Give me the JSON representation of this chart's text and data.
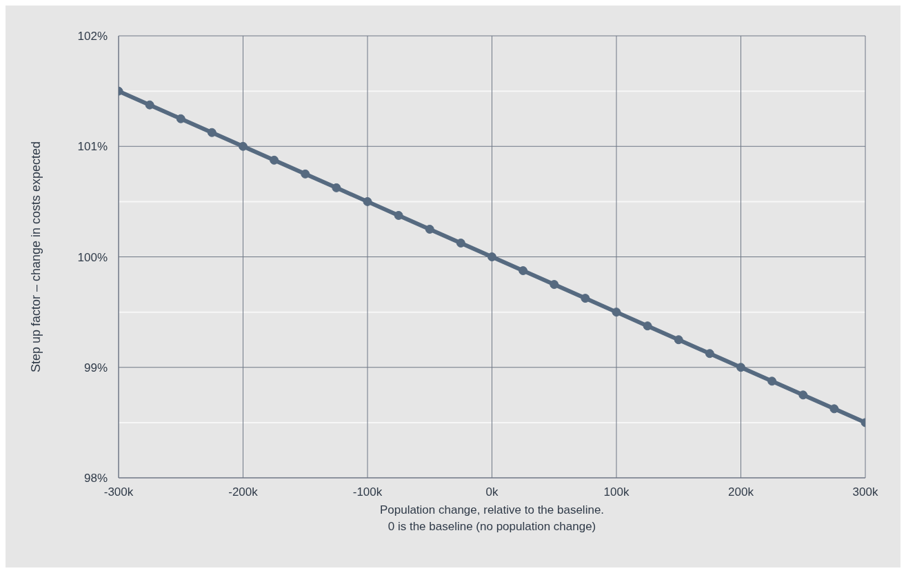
{
  "chart_data": {
    "type": "line",
    "xlabel": "Population change, relative to the baseline.\n0  is the baseline (no population change)",
    "ylabel": "Step up factor – change in costs expected",
    "x": [
      -300,
      -275,
      -250,
      -225,
      -200,
      -175,
      -150,
      -125,
      -100,
      -75,
      -50,
      -25,
      0,
      25,
      50,
      75,
      100,
      125,
      150,
      175,
      200,
      225,
      250,
      275,
      300
    ],
    "series": [
      {
        "color": "#566a80",
        "values": [
          101.5,
          101.375,
          101.25,
          101.125,
          101.0,
          100.875,
          100.75,
          100.625,
          100.5,
          100.375,
          100.25,
          100.125,
          100.0,
          99.875,
          99.75,
          99.625,
          99.5,
          99.375,
          99.25,
          99.125,
          99.0,
          98.875,
          98.75,
          98.625,
          98.5
        ]
      }
    ],
    "xlim": [
      -300,
      300
    ],
    "xticks": [
      {
        "value": -300,
        "label": "-300k"
      },
      {
        "value": -200,
        "label": "-200k"
      },
      {
        "value": -100,
        "label": "-100k"
      },
      {
        "value": 0,
        "label": "0k"
      },
      {
        "value": 100,
        "label": "100k"
      },
      {
        "value": 200,
        "label": "200k"
      },
      {
        "value": 300,
        "label": "300k"
      }
    ],
    "ylim": [
      98,
      102
    ],
    "yticks": [
      {
        "value": 98,
        "label": "98%"
      },
      {
        "value": 98.5,
        "label": null
      },
      {
        "value": 99,
        "label": "99%"
      },
      {
        "value": 99.5,
        "label": null
      },
      {
        "value": 100,
        "label": "100%"
      },
      {
        "value": 100.5,
        "label": null
      },
      {
        "value": 101,
        "label": "101%"
      },
      {
        "value": 101.5,
        "label": null
      },
      {
        "value": 102,
        "label": "102%"
      }
    ],
    "grid": true,
    "marker": "circle",
    "line_style": "solid"
  }
}
